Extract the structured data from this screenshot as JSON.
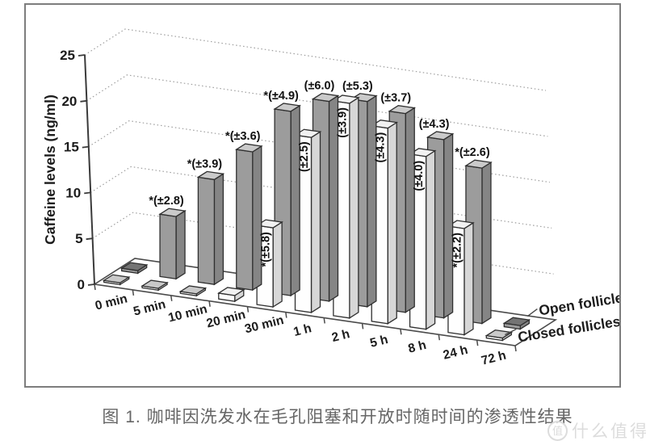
{
  "figure": {
    "caption": "图 1. 咖啡因洗发水在毛孔阻塞和开放时随时间的渗透性结果",
    "watermark": {
      "logo_char": "值",
      "text": "什么值得买"
    }
  },
  "chart_data": {
    "type": "bar",
    "style": "3d-column",
    "title": "",
    "xlabel": "",
    "ylabel": "Caffeine levels (ng/ml)",
    "ylim": [
      0,
      25
    ],
    "yticks": [
      0,
      5,
      10,
      15,
      20,
      25
    ],
    "grid": "dotted-horizontal",
    "legend_position": "bottom-right",
    "categories": [
      "0 min",
      "5 min",
      "10 min",
      "20 min",
      "30 min",
      "1 h",
      "2 h",
      "5 h",
      "8 h",
      "24 h",
      "72 h"
    ],
    "series": [
      {
        "name": "Open follicles",
        "row": "back",
        "color": "#9c9c9c",
        "values": [
          0.3,
          6.8,
          11.1,
          14.2,
          18.4,
          19.4,
          19.4,
          18.3,
          16.0,
          13.6,
          0.3
        ],
        "labels": [
          "",
          "*(±2.8)",
          "*(±3.9)",
          "*(±3.6)",
          "*(±4.9)",
          "(±6.0)",
          "(±5.3)",
          "(±3.7)",
          "(±4.3)",
          "*(±2.6)",
          ""
        ]
      },
      {
        "name": "Closed follicles",
        "row": "front",
        "color": "#fefefe",
        "values": [
          0.2,
          0.2,
          0.2,
          0.6,
          7.9,
          17.0,
          20.3,
          18.0,
          15.5,
          9.3,
          0.2
        ],
        "labels": [
          "",
          "",
          "",
          "",
          "*(±5.8)",
          "(±2.5)",
          "(±3.9)",
          "(±4.3)",
          "(±4.0)",
          "*(±2.2)",
          ""
        ]
      }
    ],
    "colors": {
      "open_front": "#9c9c9c",
      "open_side": "#858585",
      "open_top": "#cacaca",
      "open_flat_top": "#747474",
      "closed_front": "#fefefe",
      "closed_side": "#d7d7d7",
      "closed_top": "#f1f1f1",
      "closed_flat_top": "#c9c9c9",
      "outline": "#2f2f2f",
      "axis": "#4a4a4a",
      "grid": "#9e9e9e",
      "text": "#1c1c1c"
    }
  }
}
